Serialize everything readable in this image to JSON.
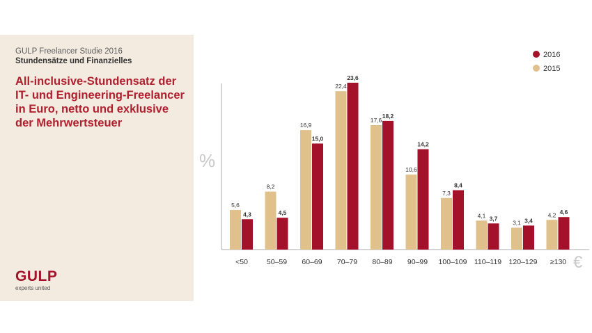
{
  "panel": {
    "study_title": "GULP Freelancer Studie 2016",
    "subtitle": "Stundensätze und Finanzielles",
    "headline": "All-inclusive-Stundensatz der IT- und Engineering-Freelancer in Euro, netto und exklusive der Mehrwertsteuer",
    "logo": "GULP",
    "tagline": "experts united"
  },
  "colors": {
    "s2016": "#a3122a",
    "s2015": "#e0c08b",
    "axis": "#c7c7c7",
    "unit": "#c9c9c9",
    "label": "#333333"
  },
  "chart_data": {
    "type": "bar",
    "categories": [
      "<50",
      "50–59",
      "60–69",
      "70–79",
      "80–89",
      "90–99",
      "100–109",
      "110–119",
      "120–129",
      "≥130"
    ],
    "series": [
      {
        "name": "2015",
        "values": [
          5.6,
          8.2,
          16.9,
          22.4,
          17.6,
          10.6,
          7.3,
          4.1,
          3.1,
          4.2
        ]
      },
      {
        "name": "2016",
        "values": [
          4.3,
          4.5,
          15.0,
          23.6,
          18.2,
          14.2,
          8.4,
          3.7,
          3.4,
          4.6
        ]
      }
    ],
    "labels_2015": [
      "5,6",
      "8,2",
      "16,9",
      "22,4",
      "17,6",
      "10,6",
      "7,3",
      "4,1",
      "3,1",
      "4,2"
    ],
    "labels_2016": [
      "4,3",
      "4,5",
      "15,0",
      "23,6",
      "18,2",
      "14,2",
      "8,4",
      "3,7",
      "3,4",
      "4,6"
    ],
    "legend": [
      "2016",
      "2015"
    ],
    "legend_position": "top-right",
    "y_unit": "%",
    "x_unit": "€",
    "ylim": [
      0,
      25
    ],
    "grid": false
  }
}
